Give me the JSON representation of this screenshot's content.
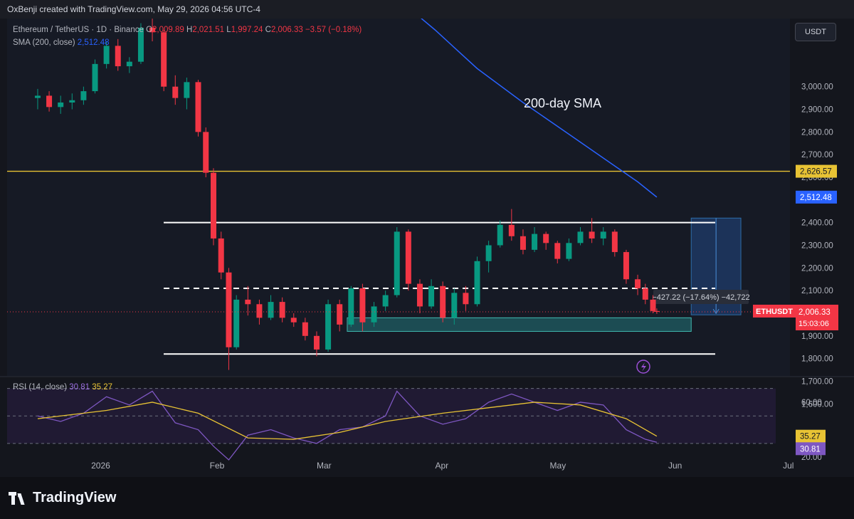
{
  "header": {
    "text": "OxBenji created with TradingView.com, May 29, 2026 04:56 UTC-4"
  },
  "legend": {
    "symbol": "Ethereum / TetherUS · 1D · Binance",
    "o_label": "O",
    "o": "2,009.89",
    "h_label": "H",
    "h": "2,021.51",
    "l_label": "L",
    "l": "1,997.24",
    "c_label": "C",
    "c": "2,006.33",
    "change": "−3.57 (−0.18%)",
    "sma_label": "SMA (200, close)",
    "sma_value": "2,512.48",
    "rsi_label": "RSI (14, close)",
    "rsi_value": "30.81",
    "rsi_ma_value": "35.27"
  },
  "currency_button": "USDT",
  "branding": "TradingView",
  "colors": {
    "up": "#089981",
    "down": "#f23645",
    "sma": "#2962ff",
    "resistance": "#e8c334",
    "range": "#ffffff",
    "rsi": "#7e57c2",
    "rsi_ma": "#e8c334",
    "zone": "#1f5d63",
    "measure": "#1e3a66"
  },
  "chart_data": {
    "type": "candlestick",
    "price_scale": {
      "min": 1600,
      "max": 3000,
      "ticks": [
        "3,000.00",
        "2,900.00",
        "2,800.00",
        "2,700.00",
        "2,600.00",
        "2,400.00",
        "2,300.00",
        "2,200.00",
        "2,100.00",
        "1,900.00",
        "1,800.00",
        "1,700.00",
        "1,600.00"
      ]
    },
    "time_labels": [
      "2026",
      "Feb",
      "Mar",
      "Apr",
      "May",
      "Jun",
      "Jul"
    ],
    "candles": [
      {
        "date": "2025-12-18",
        "o": 2950,
        "h": 2990,
        "l": 2900,
        "c": 2960
      },
      {
        "date": "2025-12-21",
        "o": 2960,
        "h": 2980,
        "l": 2890,
        "c": 2910
      },
      {
        "date": "2025-12-24",
        "o": 2910,
        "h": 2960,
        "l": 2880,
        "c": 2930
      },
      {
        "date": "2025-12-27",
        "o": 2930,
        "h": 2970,
        "l": 2900,
        "c": 2940
      },
      {
        "date": "2025-12-30",
        "o": 2940,
        "h": 3000,
        "l": 2920,
        "c": 2980
      },
      {
        "date": "2026-01-02",
        "o": 2980,
        "h": 3120,
        "l": 2970,
        "c": 3100
      },
      {
        "date": "2026-01-05",
        "o": 3100,
        "h": 3200,
        "l": 3080,
        "c": 3180
      },
      {
        "date": "2026-01-08",
        "o": 3180,
        "h": 3210,
        "l": 3070,
        "c": 3090
      },
      {
        "date": "2026-01-11",
        "o": 3090,
        "h": 3130,
        "l": 3060,
        "c": 3110
      },
      {
        "date": "2026-01-14",
        "o": 3110,
        "h": 3280,
        "l": 3100,
        "c": 3260
      },
      {
        "date": "2026-01-17",
        "o": 3260,
        "h": 3300,
        "l": 3200,
        "c": 3240
      },
      {
        "date": "2026-01-20",
        "o": 3240,
        "h": 3250,
        "l": 2980,
        "c": 3000
      },
      {
        "date": "2026-01-23",
        "o": 3000,
        "h": 3050,
        "l": 2920,
        "c": 2950
      },
      {
        "date": "2026-01-26",
        "o": 2950,
        "h": 3040,
        "l": 2900,
        "c": 3020
      },
      {
        "date": "2026-01-29",
        "o": 3020,
        "h": 3030,
        "l": 2780,
        "c": 2800
      },
      {
        "date": "2026-01-31",
        "o": 2800,
        "h": 2820,
        "l": 2600,
        "c": 2620
      },
      {
        "date": "2026-02-02",
        "o": 2620,
        "h": 2640,
        "l": 2300,
        "c": 2330
      },
      {
        "date": "2026-02-04",
        "o": 2330,
        "h": 2360,
        "l": 2150,
        "c": 2180
      },
      {
        "date": "2026-02-06",
        "o": 2180,
        "h": 2200,
        "l": 1750,
        "c": 1850
      },
      {
        "date": "2026-02-08",
        "o": 1850,
        "h": 2080,
        "l": 1840,
        "c": 2060
      },
      {
        "date": "2026-02-11",
        "o": 2060,
        "h": 2120,
        "l": 1990,
        "c": 2040
      },
      {
        "date": "2026-02-14",
        "o": 2040,
        "h": 2060,
        "l": 1950,
        "c": 1980
      },
      {
        "date": "2026-02-17",
        "o": 1980,
        "h": 2080,
        "l": 1970,
        "c": 2050
      },
      {
        "date": "2026-02-20",
        "o": 2050,
        "h": 2070,
        "l": 1960,
        "c": 1980
      },
      {
        "date": "2026-02-23",
        "o": 1980,
        "h": 2000,
        "l": 1940,
        "c": 1960
      },
      {
        "date": "2026-02-26",
        "o": 1960,
        "h": 1980,
        "l": 1880,
        "c": 1900
      },
      {
        "date": "2026-03-01",
        "o": 1900,
        "h": 1920,
        "l": 1810,
        "c": 1840
      },
      {
        "date": "2026-03-04",
        "o": 1840,
        "h": 2060,
        "l": 1830,
        "c": 2040
      },
      {
        "date": "2026-03-07",
        "o": 2040,
        "h": 2060,
        "l": 1920,
        "c": 1950
      },
      {
        "date": "2026-03-10",
        "o": 1950,
        "h": 2120,
        "l": 1940,
        "c": 2110
      },
      {
        "date": "2026-03-13",
        "o": 2110,
        "h": 2130,
        "l": 1920,
        "c": 1960
      },
      {
        "date": "2026-03-16",
        "o": 1960,
        "h": 2050,
        "l": 1940,
        "c": 2030
      },
      {
        "date": "2026-03-19",
        "o": 2030,
        "h": 2100,
        "l": 2010,
        "c": 2080
      },
      {
        "date": "2026-03-22",
        "o": 2080,
        "h": 2380,
        "l": 2070,
        "c": 2360
      },
      {
        "date": "2026-03-25",
        "o": 2360,
        "h": 2370,
        "l": 2100,
        "c": 2130
      },
      {
        "date": "2026-03-28",
        "o": 2130,
        "h": 2150,
        "l": 2000,
        "c": 2030
      },
      {
        "date": "2026-03-31",
        "o": 2030,
        "h": 2150,
        "l": 2020,
        "c": 2120
      },
      {
        "date": "2026-04-03",
        "o": 2120,
        "h": 2140,
        "l": 1960,
        "c": 1980
      },
      {
        "date": "2026-04-06",
        "o": 1980,
        "h": 2110,
        "l": 1950,
        "c": 2090
      },
      {
        "date": "2026-04-09",
        "o": 2090,
        "h": 2120,
        "l": 2010,
        "c": 2040
      },
      {
        "date": "2026-04-12",
        "o": 2040,
        "h": 2250,
        "l": 2030,
        "c": 2230
      },
      {
        "date": "2026-04-15",
        "o": 2230,
        "h": 2320,
        "l": 2180,
        "c": 2300
      },
      {
        "date": "2026-04-18",
        "o": 2300,
        "h": 2410,
        "l": 2290,
        "c": 2390
      },
      {
        "date": "2026-04-21",
        "o": 2390,
        "h": 2460,
        "l": 2320,
        "c": 2340
      },
      {
        "date": "2026-04-24",
        "o": 2340,
        "h": 2370,
        "l": 2260,
        "c": 2280
      },
      {
        "date": "2026-04-27",
        "o": 2280,
        "h": 2380,
        "l": 2270,
        "c": 2350
      },
      {
        "date": "2026-04-30",
        "o": 2350,
        "h": 2360,
        "l": 2280,
        "c": 2310
      },
      {
        "date": "2026-05-03",
        "o": 2310,
        "h": 2320,
        "l": 2220,
        "c": 2240
      },
      {
        "date": "2026-05-06",
        "o": 2240,
        "h": 2330,
        "l": 2230,
        "c": 2310
      },
      {
        "date": "2026-05-09",
        "o": 2310,
        "h": 2380,
        "l": 2300,
        "c": 2360
      },
      {
        "date": "2026-05-12",
        "o": 2360,
        "h": 2420,
        "l": 2310,
        "c": 2330
      },
      {
        "date": "2026-05-15",
        "o": 2330,
        "h": 2380,
        "l": 2300,
        "c": 2360
      },
      {
        "date": "2026-05-18",
        "o": 2360,
        "h": 2370,
        "l": 2250,
        "c": 2270
      },
      {
        "date": "2026-05-21",
        "o": 2270,
        "h": 2280,
        "l": 2130,
        "c": 2150
      },
      {
        "date": "2026-05-24",
        "o": 2150,
        "h": 2170,
        "l": 2080,
        "c": 2110
      },
      {
        "date": "2026-05-26",
        "o": 2110,
        "h": 2130,
        "l": 2040,
        "c": 2060
      },
      {
        "date": "2026-05-28",
        "o": 2060,
        "h": 2080,
        "l": 2000,
        "c": 2009.89
      },
      {
        "date": "2026-05-29",
        "o": 2009.89,
        "h": 2021.51,
        "l": 1997.24,
        "c": 2006.33
      }
    ],
    "sma_200": [
      {
        "date": "2026-03-20",
        "v": 3420
      },
      {
        "date": "2026-04-01",
        "v": 3250
      },
      {
        "date": "2026-04-12",
        "v": 3080
      },
      {
        "date": "2026-04-24",
        "v": 2930
      },
      {
        "date": "2026-05-06",
        "v": 2790
      },
      {
        "date": "2026-05-18",
        "v": 2650
      },
      {
        "date": "2026-05-24",
        "v": 2580
      },
      {
        "date": "2026-05-29",
        "v": 2512.48
      }
    ],
    "horizontal_levels": [
      {
        "price": 2626.57,
        "style": "solid",
        "color": "resistance"
      },
      {
        "price": 2400,
        "style": "solid",
        "color": "range"
      },
      {
        "price": 2110,
        "style": "dashed",
        "color": "range"
      },
      {
        "price": 1820,
        "style": "solid",
        "color": "range"
      }
    ],
    "support_zone": {
      "from": "2026-03-09",
      "to": "2026-06-07",
      "low": 1920,
      "high": 1980
    },
    "measure_box": {
      "from": "2026-06-07",
      "to": "2026-06-20",
      "top": 2420,
      "bottom": 1993,
      "label": "−427.22 (−17.64%) −42,722"
    },
    "annotation": "200-day SMA",
    "price_labels": [
      {
        "price": 2626.57,
        "text": "2,626.57",
        "kind": "resistance"
      },
      {
        "price": 2512.48,
        "text": "2,512.48",
        "kind": "sma"
      },
      {
        "price": 2006.33,
        "text": "2,006.33",
        "kind": "last",
        "tag": "ETHUSDT",
        "countdown": "15:03:06"
      }
    ],
    "rsi": {
      "scale": {
        "min": 15,
        "max": 75,
        "ticks": [
          "60.00",
          "20.00"
        ],
        "upper": 70,
        "lower": 30
      },
      "values": [
        {
          "date": "2025-12-18",
          "v": 50
        },
        {
          "date": "2025-12-24",
          "v": 46
        },
        {
          "date": "2025-12-30",
          "v": 52
        },
        {
          "date": "2026-01-05",
          "v": 64
        },
        {
          "date": "2026-01-11",
          "v": 58
        },
        {
          "date": "2026-01-17",
          "v": 68
        },
        {
          "date": "2026-01-23",
          "v": 45
        },
        {
          "date": "2026-01-29",
          "v": 40
        },
        {
          "date": "2026-02-02",
          "v": 28
        },
        {
          "date": "2026-02-06",
          "v": 18
        },
        {
          "date": "2026-02-11",
          "v": 36
        },
        {
          "date": "2026-02-17",
          "v": 40
        },
        {
          "date": "2026-02-23",
          "v": 34
        },
        {
          "date": "2026-03-01",
          "v": 30
        },
        {
          "date": "2026-03-07",
          "v": 40
        },
        {
          "date": "2026-03-13",
          "v": 42
        },
        {
          "date": "2026-03-19",
          "v": 50
        },
        {
          "date": "2026-03-22",
          "v": 68
        },
        {
          "date": "2026-03-28",
          "v": 50
        },
        {
          "date": "2026-04-03",
          "v": 44
        },
        {
          "date": "2026-04-09",
          "v": 48
        },
        {
          "date": "2026-04-15",
          "v": 60
        },
        {
          "date": "2026-04-21",
          "v": 66
        },
        {
          "date": "2026-04-27",
          "v": 60
        },
        {
          "date": "2026-05-03",
          "v": 54
        },
        {
          "date": "2026-05-09",
          "v": 60
        },
        {
          "date": "2026-05-15",
          "v": 58
        },
        {
          "date": "2026-05-21",
          "v": 40
        },
        {
          "date": "2026-05-26",
          "v": 33
        },
        {
          "date": "2026-05-29",
          "v": 30.81
        }
      ],
      "ma": [
        {
          "date": "2025-12-18",
          "v": 48
        },
        {
          "date": "2026-01-05",
          "v": 54
        },
        {
          "date": "2026-01-17",
          "v": 60
        },
        {
          "date": "2026-01-29",
          "v": 52
        },
        {
          "date": "2026-02-11",
          "v": 34
        },
        {
          "date": "2026-02-23",
          "v": 33
        },
        {
          "date": "2026-03-07",
          "v": 38
        },
        {
          "date": "2026-03-19",
          "v": 46
        },
        {
          "date": "2026-04-03",
          "v": 52
        },
        {
          "date": "2026-04-15",
          "v": 56
        },
        {
          "date": "2026-04-27",
          "v": 60
        },
        {
          "date": "2026-05-09",
          "v": 58
        },
        {
          "date": "2026-05-21",
          "v": 48
        },
        {
          "date": "2026-05-29",
          "v": 35.27
        }
      ]
    }
  }
}
